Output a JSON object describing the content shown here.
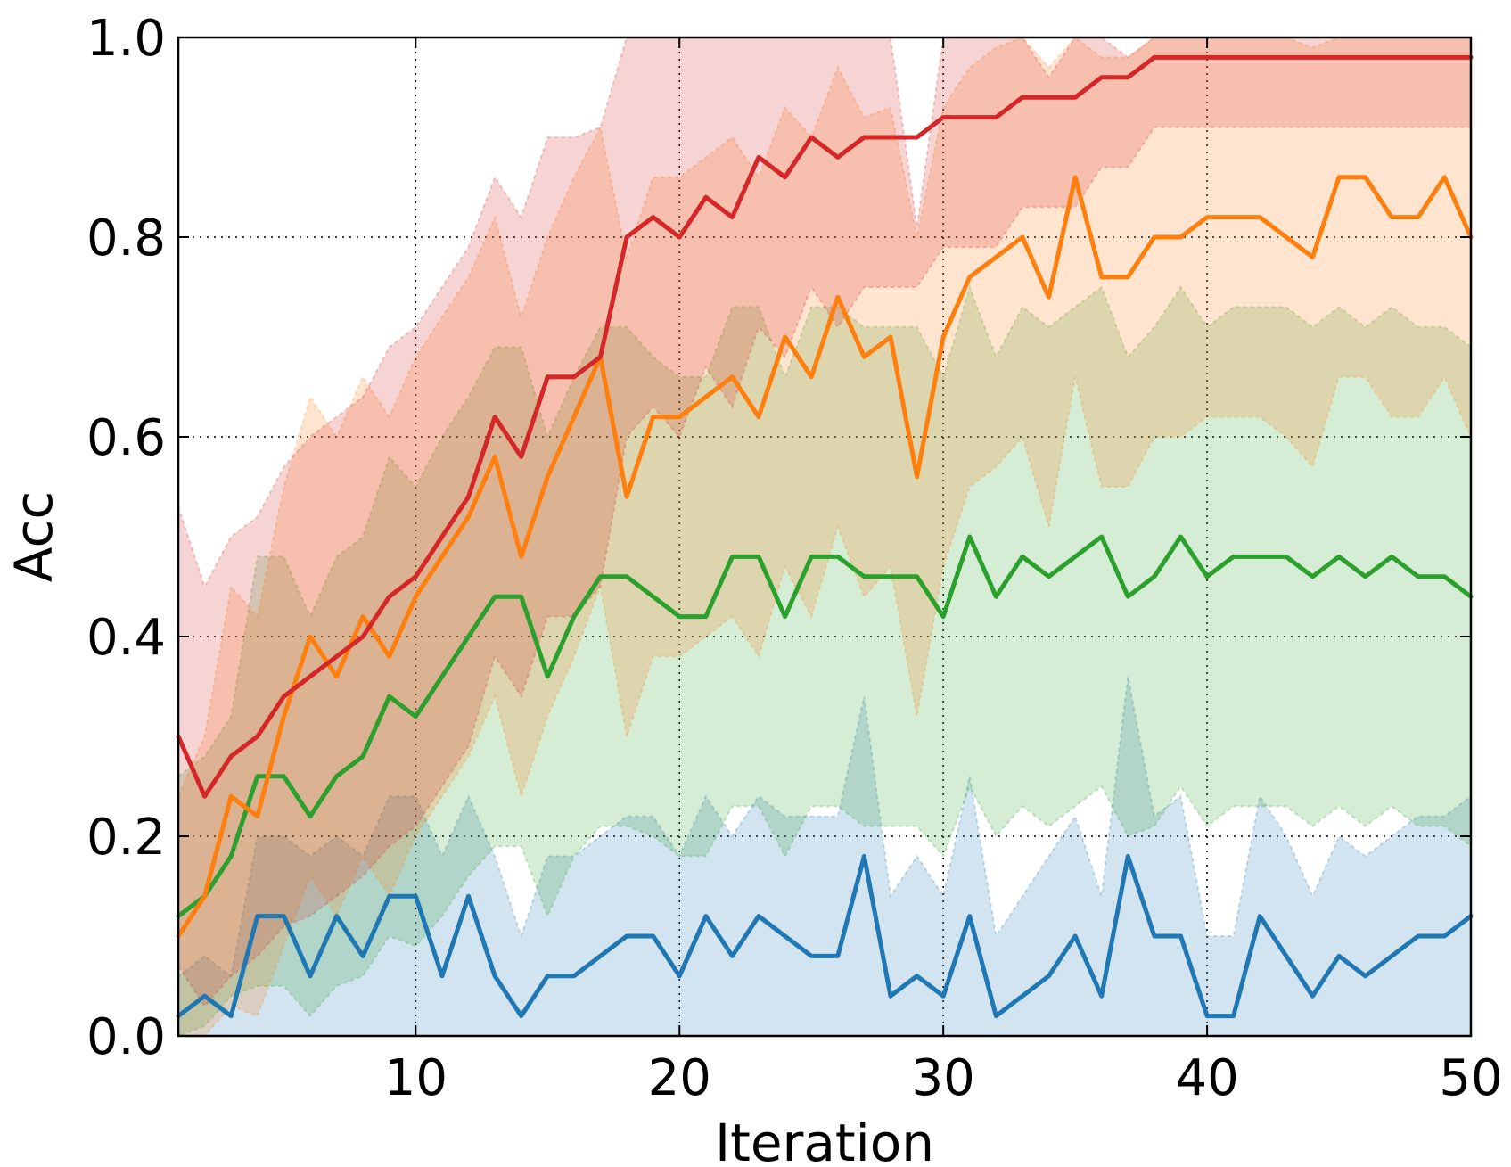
{
  "chart_data": {
    "type": "line",
    "xlabel": "Iteration",
    "ylabel": "Acc",
    "xlim": [
      1,
      50
    ],
    "ylim": [
      0,
      1.0
    ],
    "x_ticks": [
      10,
      20,
      30,
      40,
      50
    ],
    "x_tick_labels": [
      "10",
      "20",
      "30",
      "40",
      "50"
    ],
    "y_ticks": [
      0.0,
      0.2,
      0.4,
      0.6,
      0.8,
      1.0
    ],
    "y_tick_labels": [
      "0.0",
      "0.2",
      "0.4",
      "0.6",
      "0.8",
      "1.0"
    ],
    "grid": true,
    "legend": "none",
    "x": [
      1,
      2,
      3,
      4,
      5,
      6,
      7,
      8,
      9,
      10,
      11,
      12,
      13,
      14,
      15,
      16,
      17,
      18,
      19,
      20,
      21,
      22,
      23,
      24,
      25,
      26,
      27,
      28,
      29,
      30,
      31,
      32,
      33,
      34,
      35,
      36,
      37,
      38,
      39,
      40,
      41,
      42,
      43,
      44,
      45,
      46,
      47,
      48,
      49,
      50
    ],
    "series": [
      {
        "color": "#1f77b4",
        "values": [
          0.02,
          0.04,
          0.02,
          0.12,
          0.12,
          0.06,
          0.12,
          0.08,
          0.14,
          0.14,
          0.06,
          0.14,
          0.06,
          0.02,
          0.06,
          0.06,
          0.08,
          0.1,
          0.1,
          0.06,
          0.12,
          0.08,
          0.12,
          0.1,
          0.08,
          0.08,
          0.18,
          0.04,
          0.06,
          0.04,
          0.12,
          0.02,
          0.04,
          0.06,
          0.1,
          0.04,
          0.18,
          0.1,
          0.1,
          0.02,
          0.02,
          0.12,
          0.08,
          0.04,
          0.08,
          0.06,
          0.08,
          0.1,
          0.1,
          0.12
        ],
        "upper": [
          0.06,
          0.08,
          0.06,
          0.2,
          0.2,
          0.18,
          0.2,
          0.18,
          0.24,
          0.24,
          0.18,
          0.24,
          0.18,
          0.1,
          0.18,
          0.18,
          0.2,
          0.22,
          0.22,
          0.18,
          0.24,
          0.2,
          0.24,
          0.22,
          0.22,
          0.22,
          0.34,
          0.14,
          0.18,
          0.14,
          0.26,
          0.1,
          0.14,
          0.18,
          0.22,
          0.14,
          0.36,
          0.22,
          0.24,
          0.1,
          0.1,
          0.24,
          0.2,
          0.14,
          0.2,
          0.18,
          0.2,
          0.22,
          0.22,
          0.24
        ],
        "lower": [
          0,
          0,
          0,
          0,
          0,
          0,
          0,
          0,
          0,
          0,
          0,
          0,
          0,
          0,
          0,
          0,
          0,
          0,
          0,
          0,
          0,
          0,
          0,
          0,
          0,
          0,
          0,
          0,
          0,
          0,
          0,
          0,
          0,
          0,
          0,
          0,
          0,
          0,
          0,
          0,
          0,
          0,
          0,
          0,
          0,
          0,
          0,
          0,
          0,
          0
        ]
      },
      {
        "color": "#2ca02c",
        "values": [
          0.12,
          0.14,
          0.18,
          0.26,
          0.26,
          0.22,
          0.26,
          0.28,
          0.34,
          0.32,
          0.36,
          0.4,
          0.44,
          0.44,
          0.36,
          0.42,
          0.46,
          0.46,
          0.44,
          0.42,
          0.42,
          0.48,
          0.48,
          0.42,
          0.48,
          0.48,
          0.46,
          0.46,
          0.46,
          0.42,
          0.5,
          0.44,
          0.48,
          0.46,
          0.48,
          0.5,
          0.44,
          0.46,
          0.5,
          0.46,
          0.48,
          0.48,
          0.48,
          0.46,
          0.48,
          0.46,
          0.48,
          0.46,
          0.46,
          0.44
        ],
        "upper": [
          0.26,
          0.28,
          0.32,
          0.48,
          0.48,
          0.42,
          0.48,
          0.5,
          0.58,
          0.55,
          0.6,
          0.64,
          0.69,
          0.69,
          0.6,
          0.66,
          0.71,
          0.71,
          0.68,
          0.66,
          0.66,
          0.73,
          0.73,
          0.66,
          0.73,
          0.73,
          0.71,
          0.71,
          0.71,
          0.66,
          0.75,
          0.68,
          0.73,
          0.71,
          0.73,
          0.75,
          0.68,
          0.71,
          0.75,
          0.71,
          0.73,
          0.73,
          0.73,
          0.71,
          0.73,
          0.71,
          0.73,
          0.71,
          0.71,
          0.69
        ],
        "lower": [
          0.0,
          0.01,
          0.04,
          0.05,
          0.05,
          0.02,
          0.05,
          0.06,
          0.1,
          0.09,
          0.12,
          0.16,
          0.19,
          0.19,
          0.12,
          0.18,
          0.21,
          0.21,
          0.2,
          0.18,
          0.18,
          0.23,
          0.23,
          0.18,
          0.23,
          0.23,
          0.21,
          0.21,
          0.21,
          0.18,
          0.25,
          0.2,
          0.23,
          0.21,
          0.23,
          0.25,
          0.2,
          0.21,
          0.25,
          0.21,
          0.23,
          0.23,
          0.23,
          0.21,
          0.23,
          0.21,
          0.23,
          0.21,
          0.21,
          0.19
        ]
      },
      {
        "color": "#ff7f0e",
        "values": [
          0.1,
          0.14,
          0.24,
          0.22,
          0.32,
          0.4,
          0.36,
          0.42,
          0.38,
          0.44,
          0.48,
          0.52,
          0.58,
          0.48,
          0.56,
          0.62,
          0.68,
          0.54,
          0.62,
          0.62,
          0.64,
          0.66,
          0.62,
          0.7,
          0.66,
          0.74,
          0.68,
          0.7,
          0.56,
          0.7,
          0.76,
          0.78,
          0.8,
          0.74,
          0.86,
          0.76,
          0.76,
          0.8,
          0.8,
          0.82,
          0.82,
          0.82,
          0.8,
          0.78,
          0.86,
          0.86,
          0.82,
          0.82,
          0.86,
          0.8
        ],
        "upper": [
          0.24,
          0.3,
          0.45,
          0.42,
          0.55,
          0.64,
          0.6,
          0.66,
          0.62,
          0.68,
          0.72,
          0.76,
          0.82,
          0.72,
          0.8,
          0.86,
          0.91,
          0.78,
          0.86,
          0.86,
          0.88,
          0.9,
          0.86,
          0.93,
          0.9,
          0.97,
          0.92,
          0.93,
          0.8,
          0.93,
          0.97,
          0.99,
          1.0,
          0.97,
          1.0,
          0.98,
          0.98,
          1.0,
          1.0,
          1.0,
          1.0,
          1.0,
          1.0,
          0.99,
          1.0,
          1.0,
          1.0,
          1.0,
          1.0,
          1.0
        ],
        "lower": [
          0.0,
          0.0,
          0.03,
          0.02,
          0.09,
          0.16,
          0.12,
          0.18,
          0.14,
          0.2,
          0.24,
          0.28,
          0.34,
          0.24,
          0.32,
          0.38,
          0.45,
          0.3,
          0.38,
          0.38,
          0.4,
          0.42,
          0.38,
          0.47,
          0.42,
          0.51,
          0.44,
          0.47,
          0.32,
          0.47,
          0.55,
          0.57,
          0.6,
          0.51,
          0.66,
          0.55,
          0.55,
          0.6,
          0.6,
          0.62,
          0.62,
          0.62,
          0.6,
          0.57,
          0.66,
          0.66,
          0.62,
          0.62,
          0.66,
          0.6
        ]
      },
      {
        "color": "#d62728",
        "values": [
          0.3,
          0.24,
          0.28,
          0.3,
          0.34,
          0.36,
          0.38,
          0.4,
          0.44,
          0.46,
          0.5,
          0.54,
          0.62,
          0.58,
          0.66,
          0.66,
          0.68,
          0.8,
          0.82,
          0.8,
          0.84,
          0.82,
          0.88,
          0.86,
          0.9,
          0.88,
          0.9,
          0.9,
          0.9,
          0.92,
          0.92,
          0.92,
          0.94,
          0.94,
          0.94,
          0.96,
          0.96,
          0.98,
          0.98,
          0.98,
          0.98,
          0.98,
          0.98,
          0.98,
          0.98,
          0.98,
          0.98,
          0.98,
          0.98,
          0.98
        ],
        "upper": [
          0.53,
          0.45,
          0.5,
          0.52,
          0.57,
          0.6,
          0.62,
          0.64,
          0.69,
          0.71,
          0.75,
          0.79,
          0.86,
          0.82,
          0.9,
          0.9,
          0.91,
          1.0,
          1.0,
          1.0,
          1.0,
          1.0,
          1.0,
          1.0,
          1.0,
          1.0,
          1.0,
          1.0,
          0.81,
          1.0,
          1.0,
          1.0,
          1.0,
          0.96,
          1.0,
          1.0,
          0.98,
          1.0,
          1.0,
          1.0,
          1.0,
          1.0,
          1.0,
          1.0,
          1.0,
          1.0,
          1.0,
          1.0,
          1.0,
          1.0
        ],
        "lower": [
          0.07,
          0.03,
          0.06,
          0.08,
          0.11,
          0.12,
          0.14,
          0.16,
          0.19,
          0.21,
          0.25,
          0.29,
          0.38,
          0.34,
          0.42,
          0.42,
          0.45,
          0.6,
          0.63,
          0.6,
          0.67,
          0.63,
          0.71,
          0.68,
          0.75,
          0.71,
          0.75,
          0.75,
          0.75,
          0.79,
          0.79,
          0.79,
          0.83,
          0.83,
          0.83,
          0.87,
          0.87,
          0.91,
          0.91,
          0.91,
          0.91,
          0.91,
          0.91,
          0.91,
          0.91,
          0.91,
          0.91,
          0.91,
          0.91,
          0.91
        ]
      }
    ]
  }
}
